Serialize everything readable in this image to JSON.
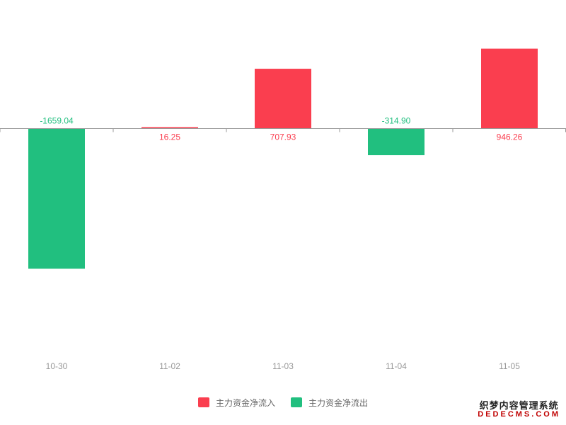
{
  "chart_data": {
    "type": "bar",
    "categories": [
      "10-30",
      "11-02",
      "11-03",
      "11-04",
      "11-05"
    ],
    "values": [
      -1659.04,
      16.25,
      707.93,
      -314.9,
      946.26
    ],
    "value_labels": [
      "-1659.04",
      "16.25",
      "707.93",
      "-314.90",
      "946.26"
    ],
    "ylim": [
      -2100,
      960
    ],
    "grid": false,
    "legend_position": "bottom-center",
    "series": [
      {
        "name": "主力资金净流入",
        "color": "#fa3e4f"
      },
      {
        "name": "主力资金净流出",
        "color": "#21bf7f"
      }
    ]
  },
  "colors": {
    "positive": "#fa3e4f",
    "negative": "#21bf7f",
    "axis": "#9a9a9a",
    "tick_label": "#999999"
  },
  "legend": {
    "inflow_label": "主力资金净流入",
    "outflow_label": "主力资金净流出"
  },
  "watermark": {
    "cn": "织梦内容管理系统",
    "en": "DEDECMS.COM"
  }
}
